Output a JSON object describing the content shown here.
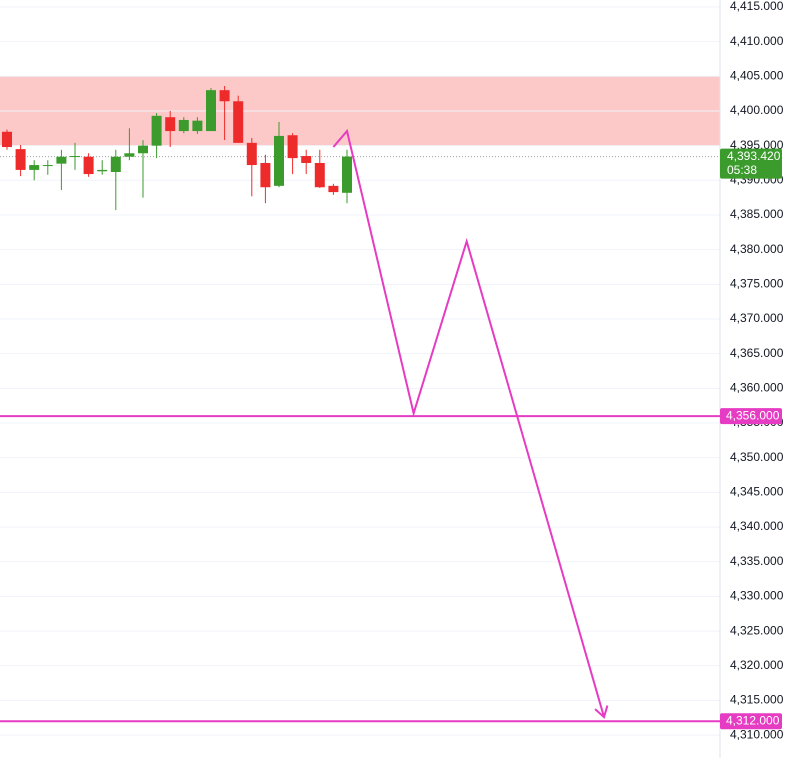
{
  "chart_data": {
    "type": "candlestick",
    "ylim": [
      4306.7,
      4416.0
    ],
    "yticks": [
      {
        "value": 4310,
        "label": "4,310.000"
      },
      {
        "value": 4315,
        "label": "4,315.000"
      },
      {
        "value": 4320,
        "label": "4,320.000"
      },
      {
        "value": 4325,
        "label": "4,325.000"
      },
      {
        "value": 4330,
        "label": "4,330.000"
      },
      {
        "value": 4335,
        "label": "4,335.000"
      },
      {
        "value": 4340,
        "label": "4,340.000"
      },
      {
        "value": 4345,
        "label": "4,345.000"
      },
      {
        "value": 4350,
        "label": "4,350.000"
      },
      {
        "value": 4355,
        "label": "4,355.000"
      },
      {
        "value": 4360,
        "label": "4,360.000"
      },
      {
        "value": 4365,
        "label": "4,365.000"
      },
      {
        "value": 4370,
        "label": "4,370.000"
      },
      {
        "value": 4375,
        "label": "4,375.000"
      },
      {
        "value": 4380,
        "label": "4,380.000"
      },
      {
        "value": 4385,
        "label": "4,385.000"
      },
      {
        "value": 4390,
        "label": "4,390.000"
      },
      {
        "value": 4395,
        "label": "4,395.000"
      },
      {
        "value": 4400,
        "label": "4,400.000"
      },
      {
        "value": 4405,
        "label": "4,405.000"
      },
      {
        "value": 4410,
        "label": "4,410.000"
      },
      {
        "value": 4415,
        "label": "4,415.000"
      }
    ],
    "grid": true,
    "up_color": "#3b9b2d",
    "down_color": "#ee2b2b",
    "open": [
      4397.0,
      4394.5,
      4391.5,
      4392.1,
      4392.4,
      4393.4,
      4393.4,
      4391.3,
      4391.2,
      4393.4,
      4393.9,
      4395.0,
      4399.1,
      4397.1,
      4397.1,
      4397.1,
      4403.0,
      4401.4,
      4395.4,
      4392.5,
      4389.2,
      4396.5,
      4393.5,
      4392.5,
      4389.2,
      4388.2
    ],
    "high": [
      4397.3,
      4395.1,
      4392.9,
      4392.9,
      4394.4,
      4395.4,
      4393.9,
      4392.9,
      4394.4,
      4397.5,
      4395.8,
      4399.7,
      4400.0,
      4399.1,
      4399.1,
      4403.3,
      4403.6,
      4402.2,
      4396.1,
      4393.7,
      4398.4,
      4396.8,
      4394.4,
      4394.4,
      4389.5,
      4394.4
    ],
    "low": [
      4394.4,
      4390.6,
      4390.0,
      4390.8,
      4388.6,
      4391.5,
      4390.5,
      4390.8,
      4385.7,
      4392.9,
      4387.5,
      4393.2,
      4394.8,
      4396.8,
      4396.7,
      4397.1,
      4395.8,
      4395.4,
      4387.7,
      4386.7,
      4389.0,
      4390.9,
      4390.9,
      4388.9,
      4387.9,
      4386.7
    ],
    "close": [
      4394.8,
      4391.5,
      4392.2,
      4392.2,
      4393.4,
      4393.5,
      4390.9,
      4391.5,
      4393.4,
      4393.9,
      4395.0,
      4399.3,
      4397.1,
      4398.7,
      4398.6,
      4403.0,
      4401.4,
      4395.4,
      4392.2,
      4389.0,
      4396.4,
      4393.2,
      4392.5,
      4389.0,
      4388.3,
      4393.42
    ],
    "last_price": {
      "value": 4393.42,
      "label": "4,393.420",
      "countdown": "05:38"
    },
    "zone": {
      "from": 4395,
      "to": 4405,
      "color": "#fcc8c8"
    },
    "hlines": [
      {
        "value": 4356,
        "label": "4,356.000",
        "color": "#e63bc3"
      },
      {
        "value": 4312,
        "label": "4,312.000",
        "color": "#e63bc3"
      }
    ],
    "projection": {
      "color": "#e63bc3",
      "x": [
        24,
        25,
        29.9,
        33.8,
        43.9
      ],
      "y": [
        4394.8,
        4397.1,
        4356.4,
        4381.2,
        4312.6
      ]
    }
  }
}
